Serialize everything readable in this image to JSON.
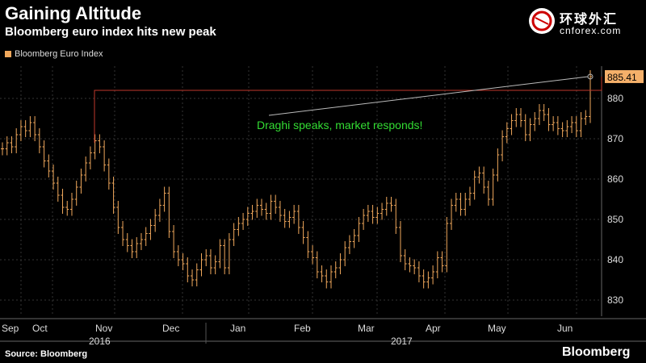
{
  "header": {
    "title": "Gaining Altitude",
    "subtitle": "Bloomberg euro index hits new peak"
  },
  "logo": {
    "cn_text": "环球外汇",
    "en_text": "cnforex.com"
  },
  "footer": {
    "source": "Source: Bloomberg",
    "brand": "Bloomberg"
  },
  "chart_data": {
    "type": "ohlc",
    "title": "Gaining Altitude",
    "subtitle": "Bloomberg euro index hits new peak",
    "xlabel": "",
    "ylabel": "",
    "ylim": [
      826,
      888
    ],
    "y_ticks": [
      830,
      840,
      850,
      860,
      870,
      880
    ],
    "grid": true,
    "legend": {
      "placement": "top-left",
      "entries": [
        "Bloomberg Euro Index"
      ]
    },
    "colors": {
      "series": "#f0a85c",
      "annotation_line": "#c0392b",
      "trend_line": "#bbbbbb",
      "annotation_text": "#33dd33",
      "grid": "#333333",
      "axis_label": "#dddddd",
      "last_label_bg": "#f5b06a"
    },
    "months": [
      "Sep",
      "Oct",
      "Nov",
      "Dec",
      "Jan",
      "Feb",
      "Mar",
      "Apr",
      "May",
      "Jun"
    ],
    "years": [
      "2016",
      "2017"
    ],
    "series": [
      {
        "name": "Bloomberg Euro Index",
        "close": [
          867.5,
          869.0,
          868.0,
          871.0,
          873.0,
          872.0,
          874.0,
          871.0,
          868.0,
          864.5,
          862.0,
          859.0,
          856.0,
          853.0,
          852.5,
          855.0,
          858.0,
          861.0,
          864.0,
          866.5,
          869.5,
          868.0,
          863.5,
          859.0,
          853.0,
          848.0,
          845.0,
          843.5,
          842.0,
          844.0,
          845.0,
          846.5,
          848.5,
          851.0,
          853.5,
          856.5,
          847.0,
          842.0,
          840.0,
          839.0,
          836.0,
          835.0,
          837.5,
          840.0,
          841.0,
          838.0,
          839.5,
          843.5,
          838.0,
          845.0,
          847.5,
          849.0,
          850.0,
          851.5,
          852.0,
          853.5,
          852.5,
          851.5,
          854.5,
          853.0,
          851.0,
          849.5,
          850.5,
          852.0,
          848.0,
          845.5,
          842.0,
          840.5,
          837.0,
          836.0,
          834.5,
          837.0,
          838.0,
          840.0,
          843.0,
          844.5,
          846.0,
          849.0,
          851.0,
          852.0,
          850.5,
          851.5,
          852.5,
          854.0,
          853.5,
          848.0,
          841.0,
          839.0,
          838.5,
          838.0,
          836.0,
          834.5,
          835.5,
          837.0,
          840.5,
          838.5,
          849.0,
          853.5,
          855.0,
          852.5,
          855.0,
          856.5,
          860.5,
          861.5,
          858.0,
          855.0,
          861.0,
          866.0,
          870.5,
          872.5,
          874.5,
          876.0,
          874.5,
          871.0,
          873.5,
          875.0,
          877.0,
          876.0,
          873.5,
          874.0,
          872.5,
          872.0,
          873.0,
          874.0,
          872.0,
          875.0,
          875.5,
          885.41
        ]
      }
    ],
    "last_value_label": "885.41",
    "annotation": "Draghi speaks, market responds!"
  }
}
